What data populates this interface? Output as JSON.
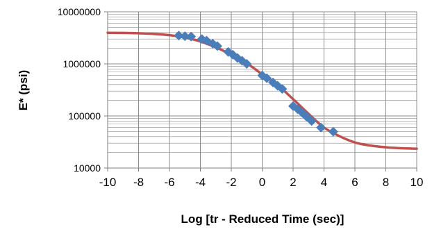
{
  "chart_data": {
    "type": "scatter",
    "title": "",
    "xlabel": "Log [tr - Reduced Time (sec)]",
    "ylabel": "E* (psi)",
    "xlim": [
      -10,
      10
    ],
    "ylim": [
      10000,
      10000000
    ],
    "yscale": "log",
    "x_ticks": [
      -10,
      -8,
      -6,
      -4,
      -2,
      0,
      2,
      4,
      6,
      8,
      10
    ],
    "x_tick_labels": [
      "-10",
      "-8",
      "-6",
      "-4",
      "-2",
      "0",
      "2",
      "4",
      "6",
      "8",
      "10"
    ],
    "y_ticks": [
      10000,
      100000,
      1000000,
      10000000
    ],
    "y_tick_labels": [
      "10000",
      "100000",
      "1000000",
      "10000000"
    ],
    "grid": true,
    "minor_grid": "horizontal",
    "legend": "none",
    "colors": {
      "measured": "#4a7ebb",
      "fit": "#c0504d",
      "grid": "#8c8c8c"
    },
    "series": [
      {
        "kind": "scatter",
        "marker": "diamond",
        "color": "#4a7ebb",
        "points": [
          [
            -5.4,
            3500000
          ],
          [
            -5.0,
            3400000
          ],
          [
            -4.6,
            3350000
          ],
          [
            -3.9,
            3000000
          ],
          [
            -3.6,
            2800000
          ],
          [
            -3.2,
            2450000
          ],
          [
            -2.9,
            2200000
          ],
          [
            -2.2,
            1700000
          ],
          [
            -1.9,
            1500000
          ],
          [
            -1.6,
            1300000
          ],
          [
            -1.3,
            1150000
          ],
          [
            -1.0,
            1000000
          ],
          [
            0.0,
            600000
          ],
          [
            0.3,
            530000
          ],
          [
            0.7,
            440000
          ],
          [
            1.0,
            380000
          ],
          [
            1.3,
            330000
          ],
          [
            2.0,
            155000
          ],
          [
            2.3,
            135000
          ],
          [
            2.6,
            115000
          ],
          [
            2.9,
            95000
          ],
          [
            3.2,
            80000
          ],
          [
            3.8,
            60000
          ],
          [
            4.6,
            50000
          ]
        ]
      },
      {
        "kind": "line",
        "color": "#c0504d",
        "points": [
          [
            -10,
            3950000
          ],
          [
            -9,
            3930000
          ],
          [
            -8,
            3870000
          ],
          [
            -7,
            3760000
          ],
          [
            -6,
            3560000
          ],
          [
            -5,
            3200000
          ],
          [
            -4,
            2700000
          ],
          [
            -3,
            2080000
          ],
          [
            -2,
            1500000
          ],
          [
            -1,
            1030000
          ],
          [
            0,
            630000
          ],
          [
            1,
            390000
          ],
          [
            2,
            210000
          ],
          [
            3,
            110000
          ],
          [
            4,
            60000
          ],
          [
            5,
            41000
          ],
          [
            6,
            31000
          ],
          [
            7,
            27000
          ],
          [
            8,
            25000
          ],
          [
            9,
            24000
          ],
          [
            10,
            23500
          ]
        ]
      }
    ]
  }
}
